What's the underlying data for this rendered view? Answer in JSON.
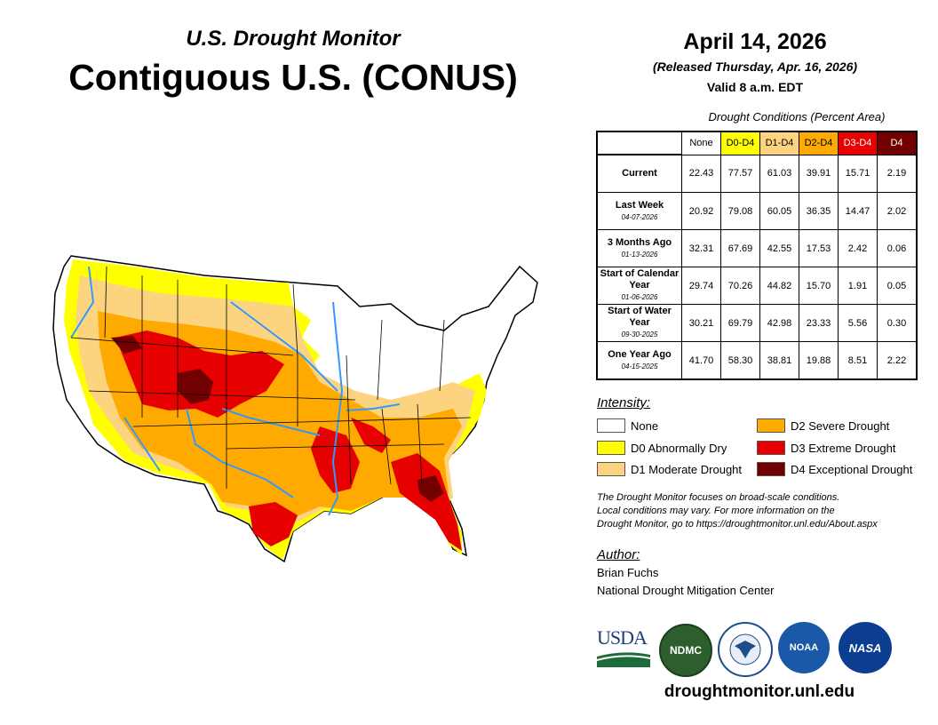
{
  "header": {
    "subtitle": "U.S. Drought Monitor",
    "title": "Contiguous U.S. (CONUS)",
    "date": "April 14, 2026",
    "released": "(Released Thursday, Apr. 16, 2026)",
    "valid": "Valid 8 a.m. EDT"
  },
  "table": {
    "caption": "Drought Conditions (Percent Area)",
    "columns": [
      {
        "label": "None",
        "color": "#ffffff",
        "text_color": "#000000"
      },
      {
        "label": "D0-D4",
        "color": "#ffff00",
        "text_color": "#000000"
      },
      {
        "label": "D1-D4",
        "color": "#fcd37f",
        "text_color": "#000000"
      },
      {
        "label": "D2-D4",
        "color": "#ffaa00",
        "text_color": "#000000"
      },
      {
        "label": "D3-D4",
        "color": "#e60000",
        "text_color": "#ffffff"
      },
      {
        "label": "D4",
        "color": "#730000",
        "text_color": "#ffffff"
      }
    ],
    "rows": [
      {
        "label": "Current",
        "sublabel": "",
        "values": [
          "22.43",
          "77.57",
          "61.03",
          "39.91",
          "15.71",
          "2.19"
        ]
      },
      {
        "label": "Last Week",
        "sublabel": "04-07-2026",
        "values": [
          "20.92",
          "79.08",
          "60.05",
          "36.35",
          "14.47",
          "2.02"
        ]
      },
      {
        "label": "3 Months Ago",
        "sublabel": "01-13-2026",
        "values": [
          "32.31",
          "67.69",
          "42.55",
          "17.53",
          "2.42",
          "0.06"
        ]
      },
      {
        "label": "Start of Calendar Year",
        "sublabel": "01-06-2026",
        "values": [
          "29.74",
          "70.26",
          "44.82",
          "15.70",
          "1.91",
          "0.05"
        ]
      },
      {
        "label": "Start of Water Year",
        "sublabel": "09-30-2025",
        "values": [
          "30.21",
          "69.79",
          "42.98",
          "23.33",
          "5.56",
          "0.30"
        ]
      },
      {
        "label": "One Year Ago",
        "sublabel": "04-15-2025",
        "values": [
          "41.70",
          "58.30",
          "38.81",
          "19.88",
          "8.51",
          "2.22"
        ]
      }
    ]
  },
  "legend": {
    "heading": "Intensity:",
    "items": [
      {
        "label": "None",
        "color": "#ffffff"
      },
      {
        "label": "D0 Abnormally Dry",
        "color": "#ffff00"
      },
      {
        "label": "D1 Moderate Drought",
        "color": "#fcd37f"
      },
      {
        "label": "D2 Severe Drought",
        "color": "#ffaa00"
      },
      {
        "label": "D3 Extreme Drought",
        "color": "#e60000"
      },
      {
        "label": "D4 Exceptional Drought",
        "color": "#730000"
      }
    ]
  },
  "note": {
    "line1": "The Drought Monitor focuses on broad-scale conditions.",
    "line2": "Local conditions may vary. For more information on the",
    "line3": "Drought Monitor, go to https://droughtmonitor.unl.edu/About.aspx"
  },
  "author": {
    "heading": "Author:",
    "name": "Brian Fuchs",
    "organization": "National Drought Mitigation Center"
  },
  "logos": {
    "usda": "USDA",
    "ndmc": "NDMC",
    "noaa": "NOAA",
    "nasa": "NASA"
  },
  "footer": {
    "website": "droughtmonitor.unl.edu"
  },
  "map": {
    "icon": "conus-drought-map",
    "river_color": "#3399ff",
    "boundary_color": "#000000"
  }
}
